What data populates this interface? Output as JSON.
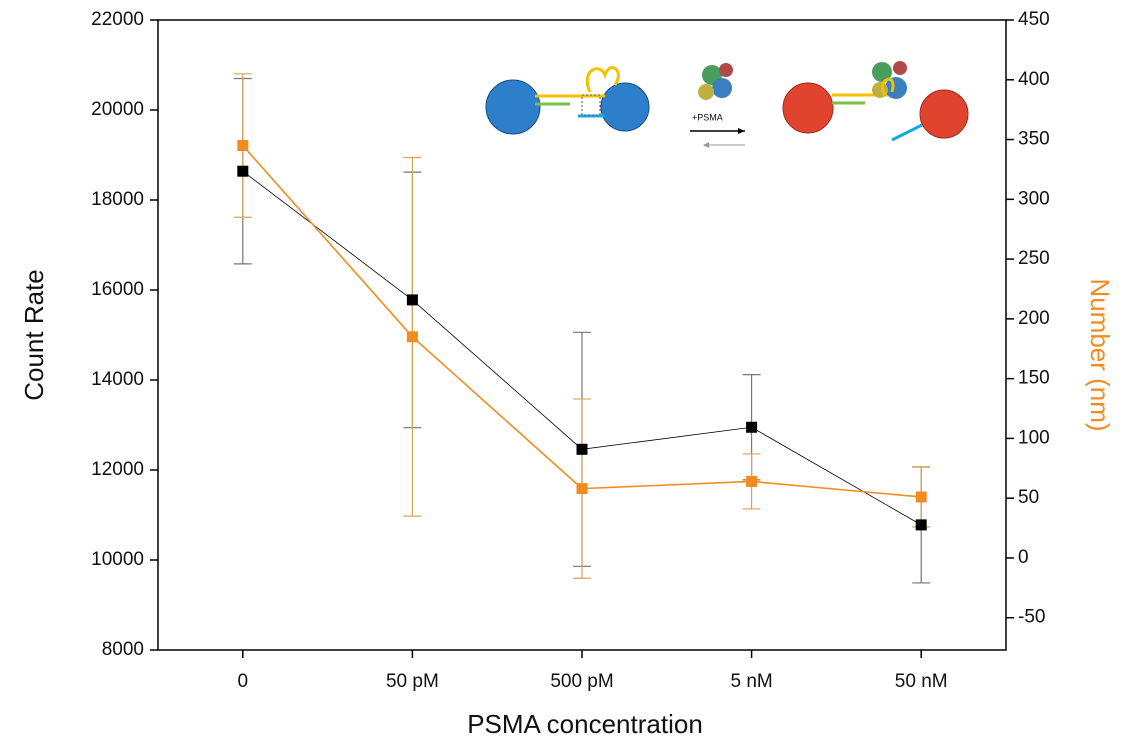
{
  "chart_data": {
    "type": "line",
    "x_label": "PSMA concentration",
    "y_label": "Count Rate",
    "y2_label": "Number (nm)",
    "annotations": [
      "+PSMA"
    ],
    "categories": [
      "0",
      "50 pM",
      "500 pM",
      "5 nM",
      "50 nM"
    ],
    "series": [
      {
        "color": "#000000",
        "values": [
          18640,
          15780,
          12460,
          12950,
          10780
        ],
        "errors": [
          2060,
          2840,
          2600,
          1170,
          1290
        ]
      },
      {
        "color": "#f28c1e",
        "axis": "y2",
        "values": [
          345,
          185,
          58,
          64,
          51
        ],
        "errors": [
          60,
          150,
          75,
          23,
          25
        ]
      }
    ],
    "ylim": [
      8000,
      22000
    ],
    "yticks": [
      8000,
      10000,
      12000,
      14000,
      16000,
      18000,
      20000,
      22000
    ],
    "y2lim": [
      -77,
      450
    ],
    "y2ticks": [
      -50,
      0,
      50,
      100,
      150,
      200,
      250,
      300,
      350,
      400,
      450
    ]
  }
}
